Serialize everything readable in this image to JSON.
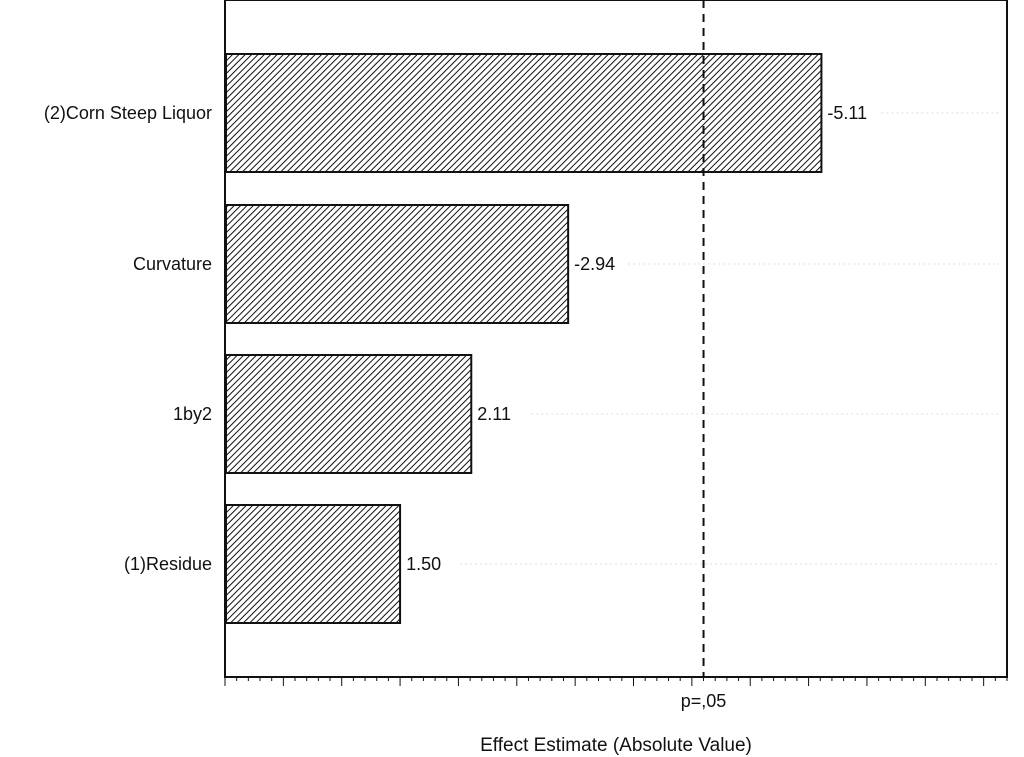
{
  "chart_data": {
    "type": "bar",
    "orientation": "horizontal",
    "categories": [
      "(2)Corn Steep Liquor",
      "Curvature",
      "1by2",
      "(1)Residue"
    ],
    "values": [
      5.11,
      2.94,
      2.11,
      1.5
    ],
    "value_labels": [
      "-5.11",
      "-2.94",
      "2.11",
      "1.50"
    ],
    "xlabel": "Effect Estimate (Absolute Value)",
    "ylabel": "",
    "xlim": [
      0,
      6.7
    ],
    "reference_line": {
      "value": 4.1,
      "label": "p=,05",
      "style": "dashed"
    },
    "bar_fill": "diagonal-hatch",
    "colors": {
      "bar_stroke": "#111111",
      "hatch": "#111111",
      "background": "#ffffff"
    }
  }
}
